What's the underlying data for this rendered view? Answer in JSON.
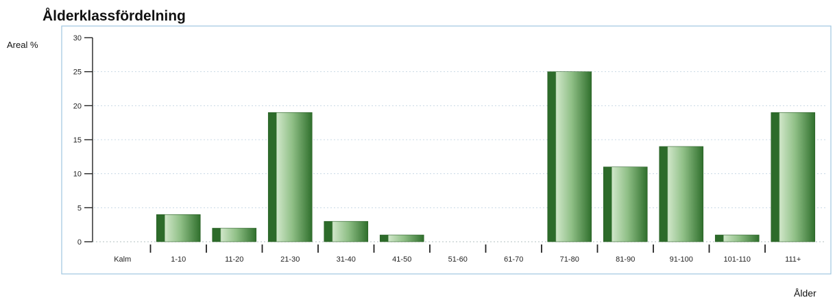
{
  "chart_data": {
    "type": "bar",
    "title": "Ålderklassfördelning",
    "ylabel": "Areal %",
    "xlabel": "Ålder",
    "categories": [
      "Kalm",
      "1-10",
      "11-20",
      "21-30",
      "31-40",
      "41-50",
      "51-60",
      "61-70",
      "71-80",
      "81-90",
      "91-100",
      "101-110",
      "111+"
    ],
    "values": [
      0,
      4,
      2,
      19,
      3,
      1,
      0,
      0,
      25,
      11,
      14,
      1,
      19
    ],
    "ylim": [
      0,
      30
    ],
    "yticks": [
      "0",
      "5",
      "10",
      "15",
      "20",
      "25",
      "30"
    ],
    "grid": "horizontal dotted",
    "legend": "none",
    "colors": {
      "bar_dark": "#2d6b2a",
      "bar_mid": "#5e9d58",
      "bar_light": "#cfe6c8",
      "frame": "#9ec6e0"
    }
  }
}
